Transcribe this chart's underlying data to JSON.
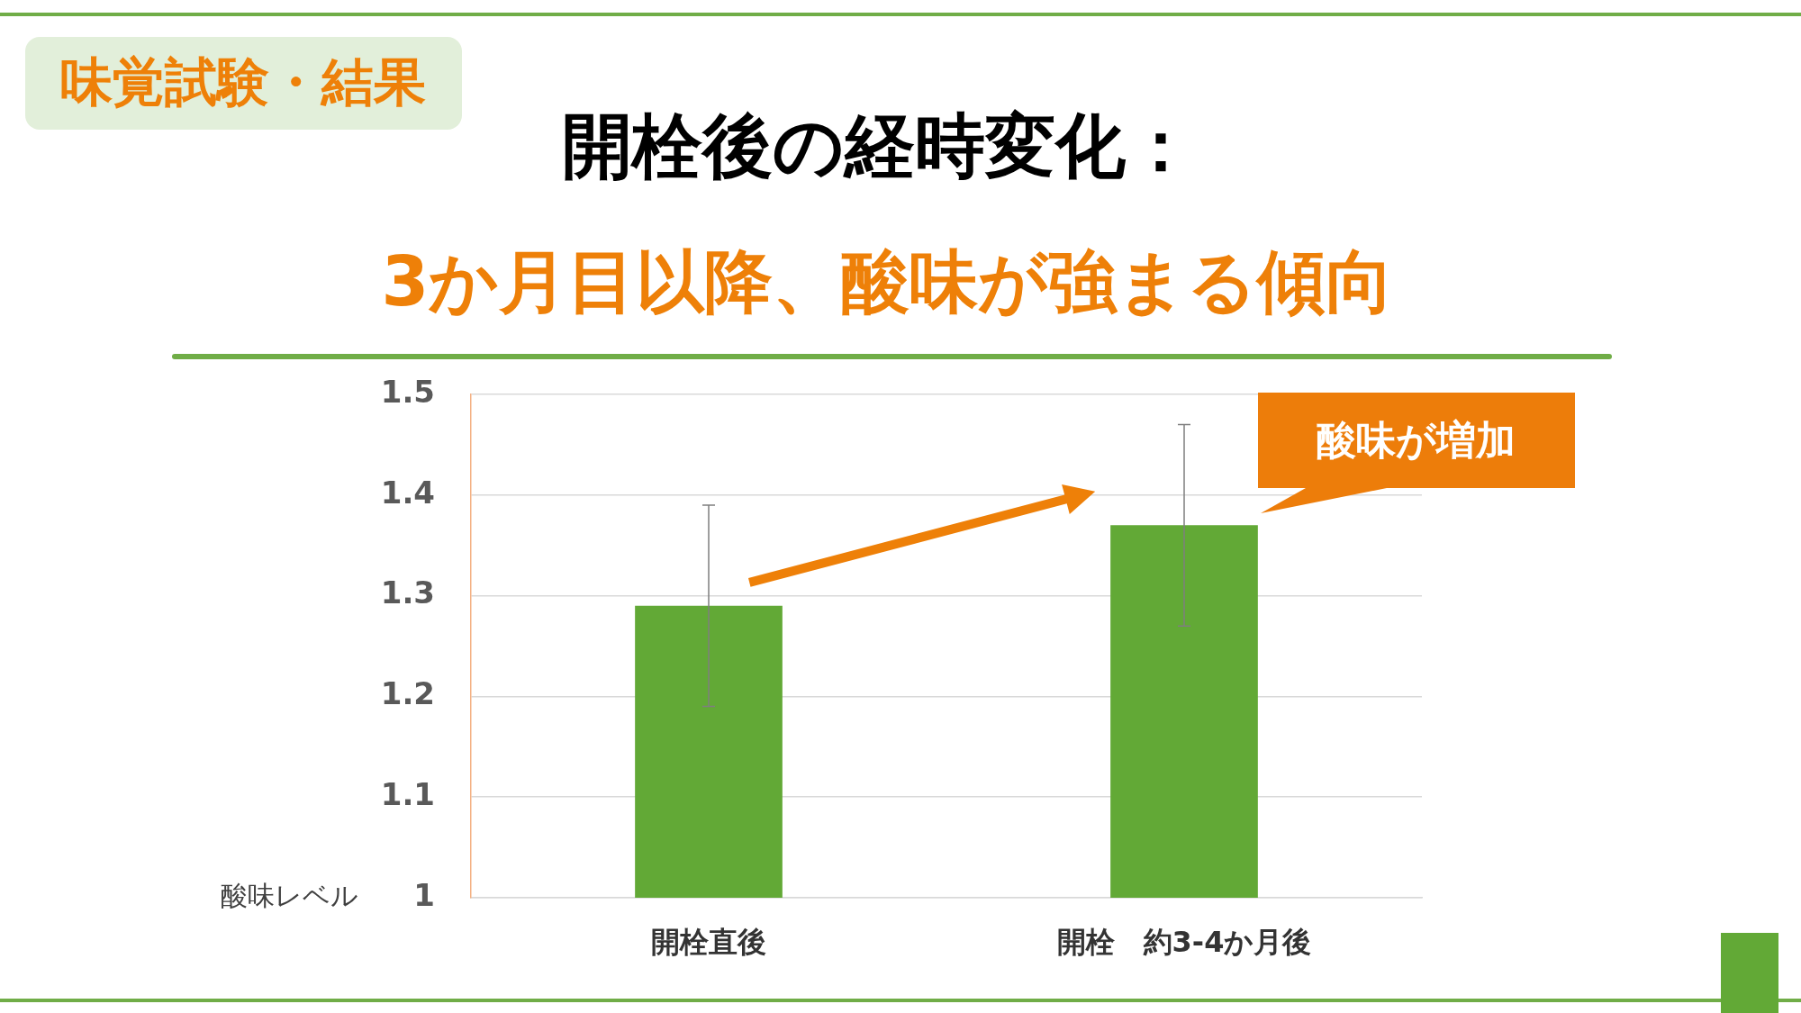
{
  "chart_data": {
    "type": "bar",
    "title": "開栓後の経時変化：",
    "subtitle": "3か月目以降、酸味が強まる傾向",
    "ylabel": "酸味レベル",
    "categories": [
      "開栓直後",
      "開栓　約3-4か月後"
    ],
    "values": [
      1.29,
      1.37
    ],
    "color": "#62a936",
    "errors": [
      0.1,
      0.1
    ],
    "ylim": [
      1,
      1.5
    ],
    "yticks": [
      1,
      1.1,
      1.2,
      1.3,
      1.4,
      1.5
    ],
    "grid": "y",
    "legend": false,
    "annotations": [
      "味覚試験・結果",
      "酸味が増加"
    ]
  }
}
